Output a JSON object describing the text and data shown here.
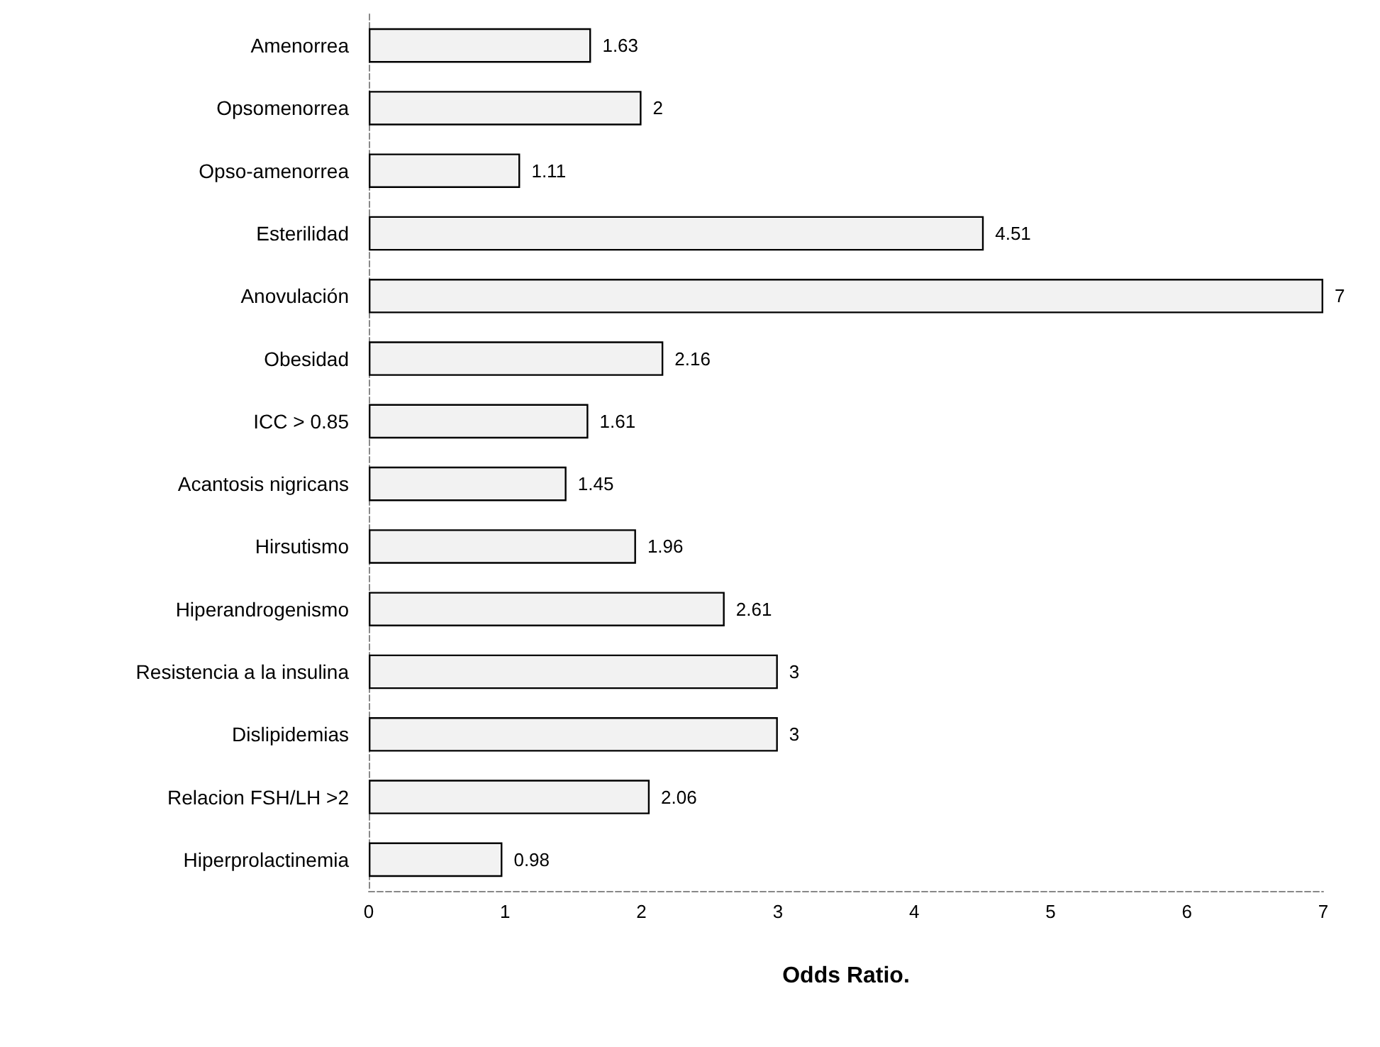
{
  "chart_data": {
    "type": "bar",
    "orientation": "horizontal",
    "xlabel": "Odds Ratio.",
    "categories": [
      "Amenorrea",
      "Opsomenorrea",
      "Opso-amenorrea",
      "Esterilidad",
      "Anovulación",
      "Obesidad",
      "ICC > 0.85",
      "Acantosis nigricans",
      "Hirsutismo",
      "Hiperandrogenismo",
      "Resistencia a la insulina",
      "Dislipidemias",
      "Relacion FSH/LH >2",
      "Hiperprolactinemia"
    ],
    "values": [
      1.63,
      2,
      1.11,
      4.51,
      7,
      2.16,
      1.61,
      1.45,
      1.96,
      2.61,
      3,
      3,
      2.06,
      0.98
    ],
    "color": "#f2f2f2",
    "xlim": [
      0,
      7
    ],
    "xticks": [
      0,
      1,
      2,
      3,
      4,
      5,
      6,
      7
    ],
    "data_labels": true,
    "grid": false
  }
}
